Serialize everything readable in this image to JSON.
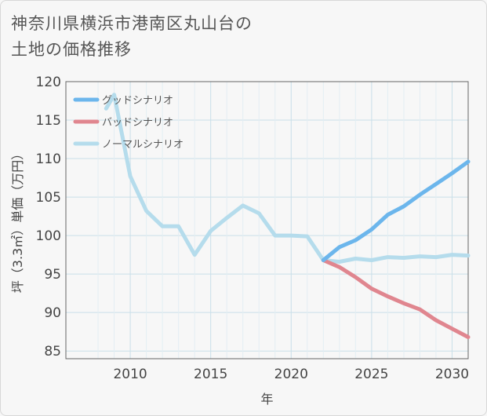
{
  "title": {
    "line1": "神奈川県横浜市港南区丸山台の",
    "line2": "土地の価格推移"
  },
  "chart_data": {
    "type": "line",
    "xlabel": "年",
    "ylabel": "坪（3.3㎡）単価（万円）",
    "xlim": [
      2006,
      2031
    ],
    "ylim": [
      84,
      120
    ],
    "xticks": [
      2010,
      2015,
      2020,
      2025,
      2030
    ],
    "yticks": [
      85,
      90,
      95,
      100,
      105,
      110,
      115,
      120
    ],
    "grid": true,
    "legend_position": "top-left",
    "series": [
      {
        "name": "グッドシナリオ",
        "color": "#6cb6ec",
        "points": [
          [
            2022,
            96.8
          ],
          [
            2023,
            98.5
          ],
          [
            2024,
            99.4
          ],
          [
            2025,
            100.8
          ],
          [
            2026,
            102.7
          ],
          [
            2027,
            103.8
          ],
          [
            2028,
            105.3
          ],
          [
            2029,
            106.7
          ],
          [
            2030,
            108.1
          ],
          [
            2031,
            109.6
          ]
        ]
      },
      {
        "name": "バッドシナリオ",
        "color": "#e0868f",
        "points": [
          [
            2022,
            96.8
          ],
          [
            2023,
            95.9
          ],
          [
            2024,
            94.6
          ],
          [
            2025,
            93.1
          ],
          [
            2026,
            92.1
          ],
          [
            2027,
            91.2
          ],
          [
            2028,
            90.4
          ],
          [
            2029,
            89.0
          ],
          [
            2030,
            87.9
          ],
          [
            2031,
            86.8
          ]
        ]
      },
      {
        "name": "ノーマルシナリオ",
        "color": "#b5dcec",
        "points": [
          [
            2008.5,
            116.5
          ],
          [
            2009,
            118.3
          ],
          [
            2010,
            107.7
          ],
          [
            2011,
            103.2
          ],
          [
            2012,
            101.2
          ],
          [
            2013,
            101.2
          ],
          [
            2014,
            97.5
          ],
          [
            2015,
            100.6
          ],
          [
            2016,
            102.3
          ],
          [
            2017,
            103.9
          ],
          [
            2018,
            102.9
          ],
          [
            2019,
            100.0
          ],
          [
            2020,
            100.0
          ],
          [
            2021,
            99.9
          ],
          [
            2022,
            96.8
          ],
          [
            2023,
            96.6
          ],
          [
            2024,
            97.0
          ],
          [
            2025,
            96.8
          ],
          [
            2026,
            97.2
          ],
          [
            2027,
            97.1
          ],
          [
            2028,
            97.3
          ],
          [
            2029,
            97.2
          ],
          [
            2030,
            97.5
          ],
          [
            2031,
            97.4
          ]
        ]
      }
    ]
  }
}
